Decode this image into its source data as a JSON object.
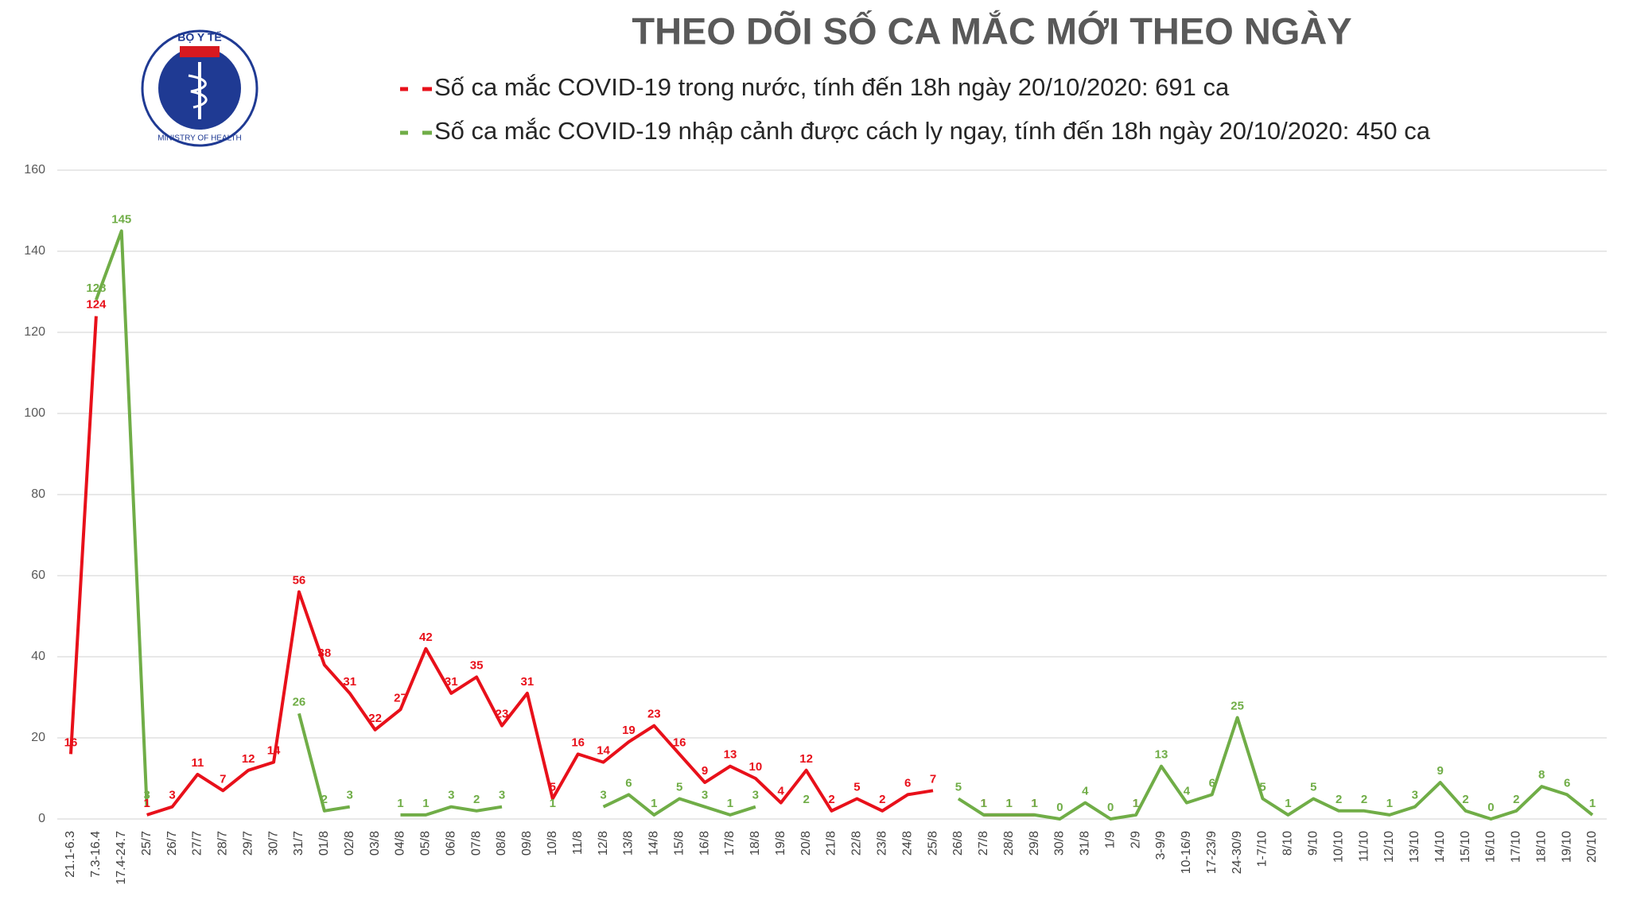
{
  "logo": {
    "top_text": "BỘ Y TẾ",
    "bottom_text": "MINISTRY OF HEALTH"
  },
  "chart_data": {
    "type": "line",
    "title": "THEO DÕI SỐ CA MẮC MỚI THEO NGÀY",
    "categories": [
      "21.1-6.3",
      "7.3-16.4",
      "17.4-24.7",
      "25/7",
      "26/7",
      "27/7",
      "28/7",
      "29/7",
      "30/7",
      "31/7",
      "01/8",
      "02/8",
      "03/8",
      "04/8",
      "05/8",
      "06/8",
      "07/8",
      "08/8",
      "09/8",
      "10/8",
      "11/8",
      "12/8",
      "13/8",
      "14/8",
      "15/8",
      "16/8",
      "17/8",
      "18/8",
      "19/8",
      "20/8",
      "21/8",
      "22/8",
      "23/8",
      "24/8",
      "25/8",
      "26/8",
      "27/8",
      "28/8",
      "29/8",
      "30/8",
      "31/8",
      "1/9",
      "2/9",
      "3-9/9",
      "10-16/9",
      "17-23/9",
      "24-30/9",
      "1-7/10",
      "8/10",
      "9/10",
      "10/10",
      "11/10",
      "12/10",
      "13/10",
      "14/10",
      "15/10",
      "16/10",
      "17/10",
      "18/10",
      "19/10",
      "20/10"
    ],
    "series": [
      {
        "name": "Số ca mắc COVID-19 trong nước, tính đến 18h ngày 20/10/2020: 691 ca",
        "color": "#e8101a",
        "values": [
          16,
          124,
          null,
          1,
          3,
          11,
          7,
          12,
          14,
          56,
          38,
          31,
          22,
          27,
          42,
          31,
          35,
          23,
          31,
          5,
          16,
          14,
          19,
          23,
          16,
          9,
          13,
          10,
          4,
          12,
          2,
          5,
          2,
          6,
          7,
          null,
          1,
          1,
          1,
          null,
          null,
          null,
          1,
          null,
          null,
          null,
          null,
          null,
          null,
          null,
          null,
          null,
          null,
          null,
          null,
          null,
          null,
          null,
          null,
          null,
          null
        ]
      },
      {
        "name": "Số ca mắc COVID-19 nhập cảnh được cách ly ngay, tính đến 18h ngày 20/10/2020: 450 ca",
        "color": "#70ad47",
        "values": [
          null,
          128,
          145,
          3,
          null,
          null,
          null,
          null,
          null,
          26,
          2,
          3,
          null,
          1,
          1,
          3,
          2,
          3,
          null,
          1,
          null,
          3,
          6,
          1,
          5,
          3,
          1,
          3,
          null,
          2,
          null,
          null,
          null,
          null,
          null,
          5,
          1,
          1,
          1,
          0,
          4,
          0,
          1,
          13,
          4,
          6,
          25,
          5,
          1,
          5,
          2,
          2,
          1,
          3,
          9,
          2,
          0,
          2,
          8,
          6,
          1
        ]
      }
    ],
    "ylim": [
      0,
      160
    ],
    "yticks": [
      0,
      20,
      40,
      60,
      80,
      100,
      120,
      140,
      160
    ],
    "grid": true
  }
}
